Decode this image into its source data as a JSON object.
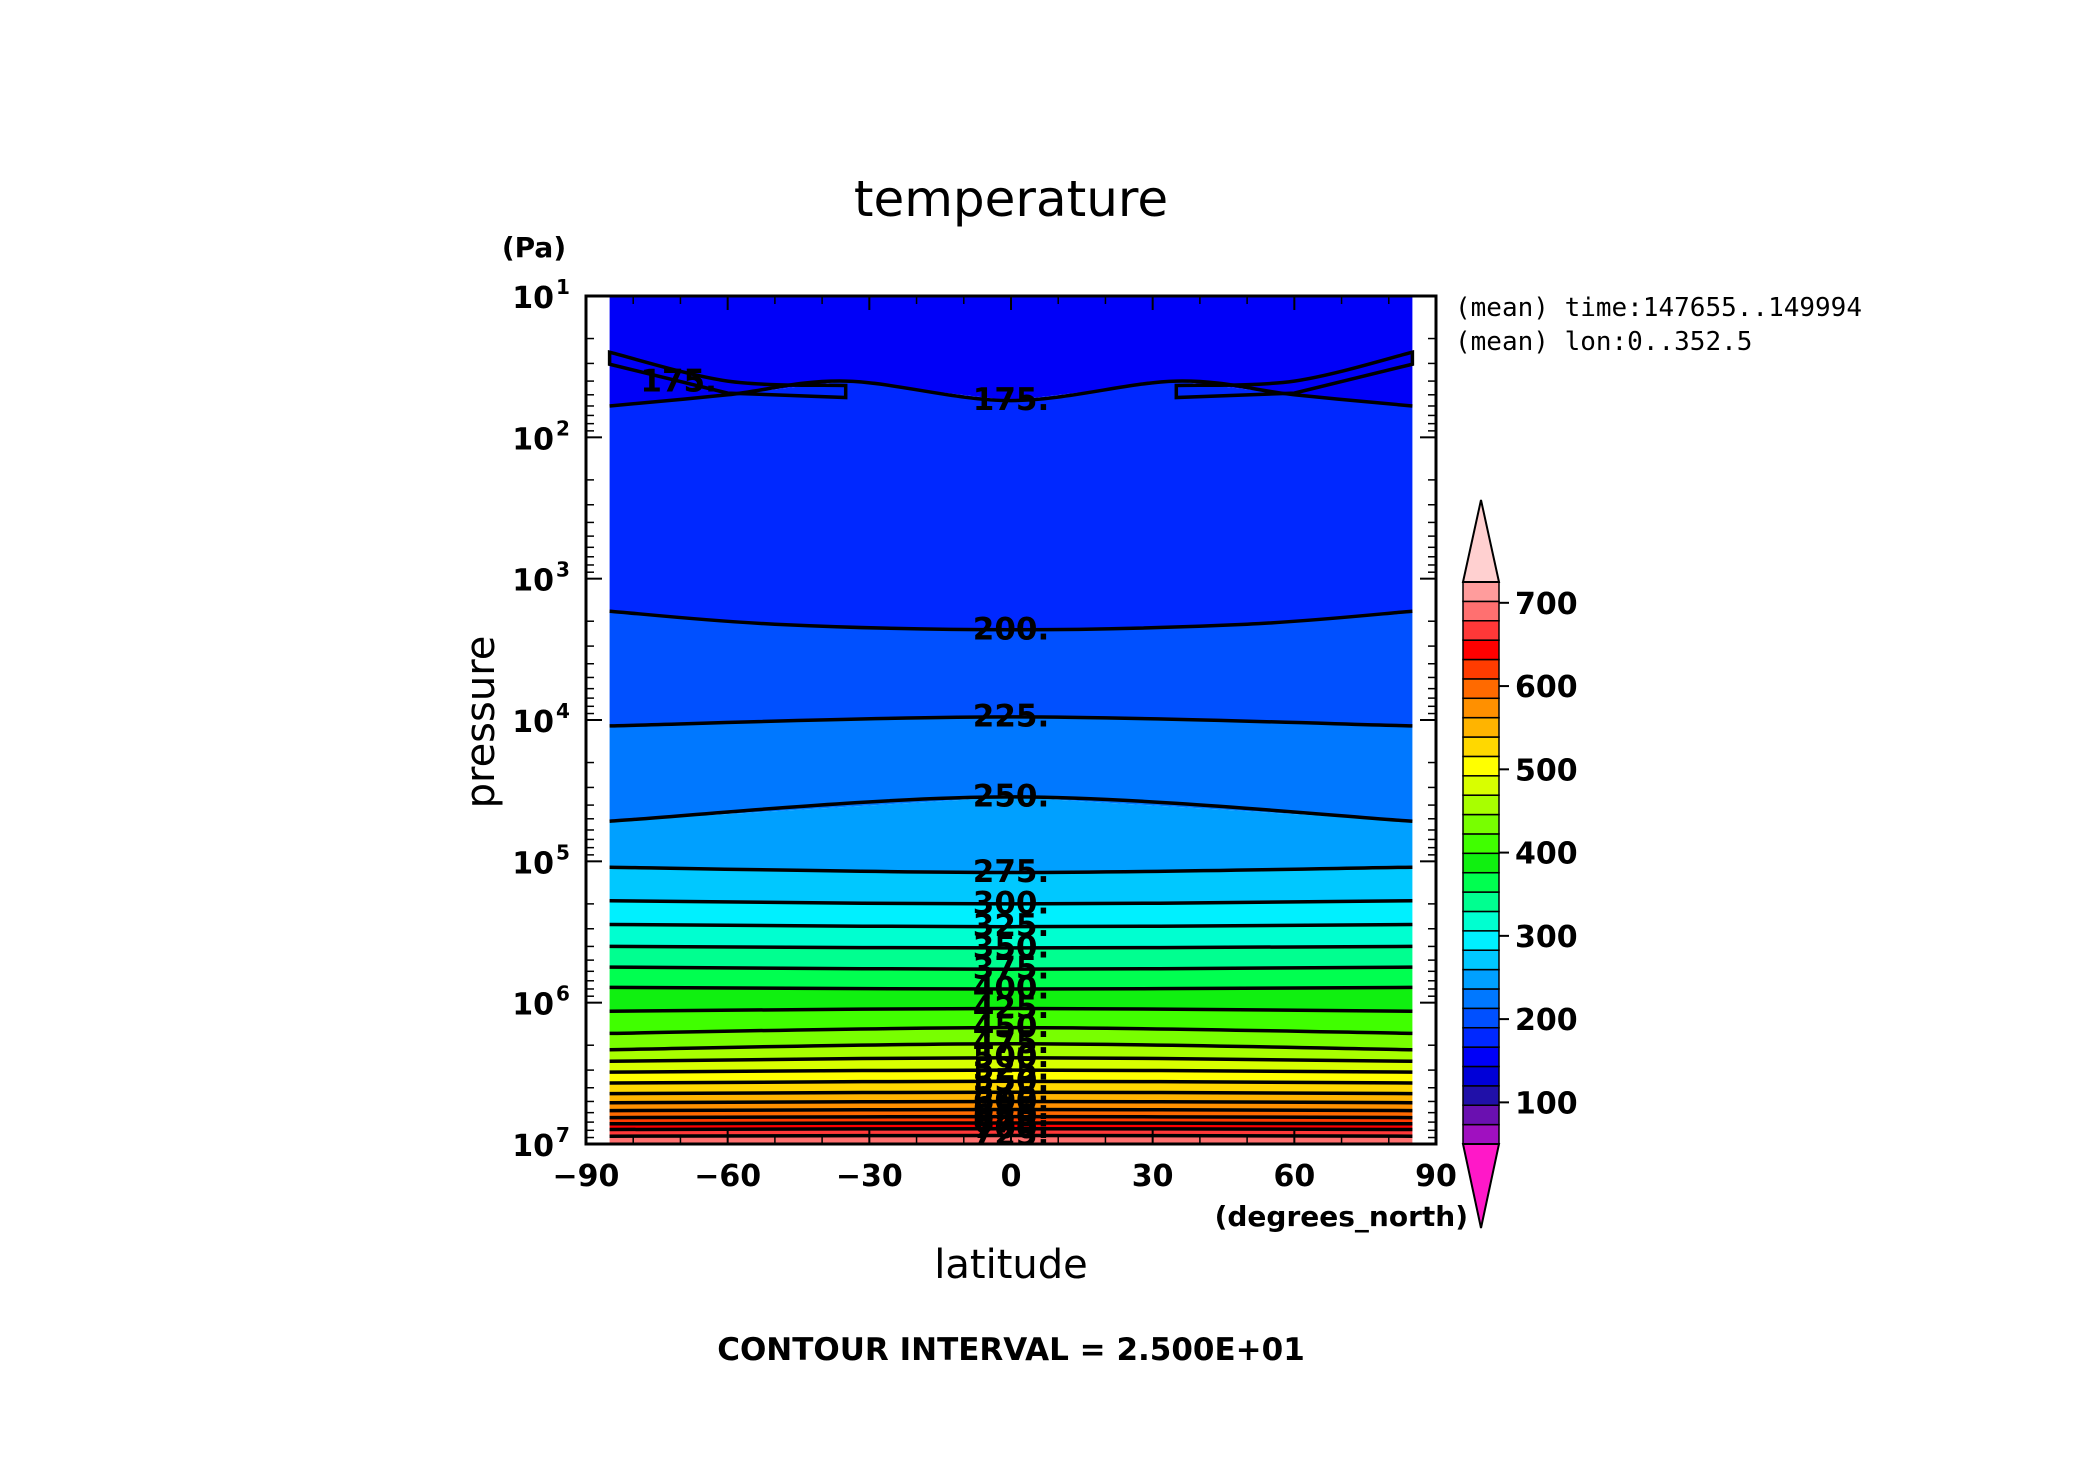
{
  "chart_data": {
    "type": "contour",
    "title": "temperature",
    "xlabel": "latitude",
    "xunit": "(degrees_north)",
    "ylabel": "pressure",
    "yunit": "(Pa)",
    "yscale": "log",
    "yreversed": true,
    "xlim": [
      -90,
      90
    ],
    "ylim": [
      10,
      10000000
    ],
    "xticks": [
      -90,
      -60,
      -30,
      0,
      30,
      60,
      90
    ],
    "xticklabels": [
      "−90",
      "−60",
      "−30",
      "0",
      "30",
      "60",
      "90"
    ],
    "yticks": [
      {
        "base": "10",
        "exp": "1"
      },
      {
        "base": "10",
        "exp": "2"
      },
      {
        "base": "10",
        "exp": "3"
      },
      {
        "base": "10",
        "exp": "4"
      },
      {
        "base": "10",
        "exp": "5"
      },
      {
        "base": "10",
        "exp": "6"
      },
      {
        "base": "10",
        "exp": "7"
      }
    ],
    "annotations": [
      "(mean) time:147655..149994",
      "(mean) lon:0..352.5"
    ],
    "footer": "CONTOUR INTERVAL = 2.500E+01",
    "contour_interval": 25,
    "data_extent": {
      "lat": [
        -85,
        85
      ],
      "pressure": [
        2.6,
        10000000
      ]
    },
    "colorbar": {
      "min": 50,
      "max": 725,
      "step": 25,
      "ticks": [
        100,
        200,
        300,
        400,
        500,
        600,
        700
      ],
      "tick_labels": [
        "100",
        "200",
        "300",
        "400",
        "500",
        "600",
        "700"
      ],
      "extend": "both",
      "under_color": "#ff18c8",
      "over_color": "#ffd0d0",
      "colors": [
        "#a010c0",
        "#6a10b0",
        "#2010a8",
        "#0000d8",
        "#0000f8",
        "#0028ff",
        "#0050ff",
        "#0078ff",
        "#00a0ff",
        "#00c8ff",
        "#00f0ff",
        "#00ffd0",
        "#00ff90",
        "#00ff50",
        "#10f010",
        "#40ff00",
        "#78ff00",
        "#a8ff00",
        "#d8ff00",
        "#ffff00",
        "#ffd800",
        "#ffb400",
        "#ff9000",
        "#ff6a00",
        "#ff3c00",
        "#ff0000",
        "#ff3838",
        "#ff7070",
        "#ff9c9c"
      ]
    },
    "contours": [
      {
        "level": 175,
        "label": "175.",
        "points": [
          [
            -85,
            60
          ],
          [
            -60,
            50
          ],
          [
            -35,
            40
          ],
          [
            0,
            55
          ],
          [
            35,
            40
          ],
          [
            60,
            50
          ],
          [
            85,
            60
          ]
        ]
      },
      {
        "level": 175,
        "label": "175.",
        "points": [
          [
            -85,
            25
          ],
          [
            -60,
            40
          ],
          [
            -35,
            43
          ]
        ]
      },
      {
        "level": 175,
        "label": "",
        "points": [
          [
            35,
            43
          ],
          [
            60,
            40
          ],
          [
            85,
            25
          ]
        ]
      },
      {
        "level": 200,
        "label": "200.",
        "points": [
          [
            -85,
            1700
          ],
          [
            -50,
            2100
          ],
          [
            0,
            2300
          ],
          [
            50,
            2100
          ],
          [
            85,
            1700
          ]
        ]
      },
      {
        "level": 225,
        "label": "225.",
        "points": [
          [
            -85,
            11000
          ],
          [
            0,
            9500
          ],
          [
            85,
            11000
          ]
        ]
      },
      {
        "level": 250,
        "label": "250.",
        "points": [
          [
            -85,
            52000
          ],
          [
            0,
            35000
          ],
          [
            85,
            52000
          ]
        ]
      },
      {
        "level": 275,
        "label": "275.",
        "points": [
          [
            -85,
            110000
          ],
          [
            0,
            120000
          ],
          [
            85,
            110000
          ]
        ]
      },
      {
        "level": 300,
        "label": "300.",
        "points": [
          [
            -85,
            190000
          ],
          [
            0,
            200000
          ],
          [
            85,
            190000
          ]
        ]
      },
      {
        "level": 325,
        "label": "325.",
        "points": [
          [
            -85,
            280000
          ],
          [
            0,
            290000
          ],
          [
            85,
            280000
          ]
        ]
      },
      {
        "level": 350,
        "label": "350.",
        "points": [
          [
            -85,
            400000
          ],
          [
            0,
            410000
          ],
          [
            85,
            400000
          ]
        ]
      },
      {
        "level": 375,
        "label": "375.",
        "points": [
          [
            -85,
            560000
          ],
          [
            0,
            580000
          ],
          [
            85,
            560000
          ]
        ]
      },
      {
        "level": 400,
        "label": "400.",
        "points": [
          [
            -85,
            780000
          ],
          [
            0,
            800000
          ],
          [
            85,
            780000
          ]
        ]
      },
      {
        "level": 425,
        "label": "425.",
        "points": [
          [
            -85,
            1150000
          ],
          [
            0,
            1100000
          ],
          [
            85,
            1150000
          ]
        ]
      },
      {
        "level": 450,
        "label": "450.",
        "points": [
          [
            -85,
            1650000
          ],
          [
            0,
            1500000
          ],
          [
            85,
            1650000
          ]
        ]
      },
      {
        "level": 475,
        "label": "475.",
        "points": [
          [
            -85,
            2150000
          ],
          [
            0,
            1950000
          ],
          [
            85,
            2150000
          ]
        ]
      },
      {
        "level": 500,
        "label": "500.",
        "points": [
          [
            -85,
            2600000
          ],
          [
            0,
            2450000
          ],
          [
            85,
            2600000
          ]
        ]
      },
      {
        "level": 525,
        "label": "525.",
        "points": [
          [
            -85,
            3100000
          ],
          [
            0,
            3000000
          ],
          [
            85,
            3100000
          ]
        ]
      },
      {
        "level": 550,
        "label": "550.",
        "points": [
          [
            -85,
            3700000
          ],
          [
            0,
            3600000
          ],
          [
            85,
            3700000
          ]
        ]
      },
      {
        "level": 575,
        "label": "575.",
        "points": [
          [
            -85,
            4400000
          ],
          [
            0,
            4300000
          ],
          [
            85,
            4400000
          ]
        ]
      },
      {
        "level": 600,
        "label": "600.",
        "points": [
          [
            -85,
            5100000
          ],
          [
            0,
            5000000
          ],
          [
            85,
            5100000
          ]
        ]
      },
      {
        "level": 625,
        "label": "625.",
        "points": [
          [
            -85,
            5800000
          ],
          [
            0,
            5700000
          ],
          [
            85,
            5800000
          ]
        ]
      },
      {
        "level": 650,
        "label": "650.",
        "points": [
          [
            -85,
            6500000
          ],
          [
            0,
            6400000
          ],
          [
            85,
            6500000
          ]
        ]
      },
      {
        "level": 675,
        "label": "675.",
        "points": [
          [
            -85,
            7200000
          ],
          [
            0,
            7100000
          ],
          [
            85,
            7200000
          ]
        ]
      },
      {
        "level": 700,
        "label": "700.",
        "points": [
          [
            -85,
            7900000
          ],
          [
            0,
            7800000
          ],
          [
            85,
            7900000
          ]
        ]
      },
      {
        "level": 725,
        "label": "725.",
        "points": [
          [
            -85,
            8800000
          ],
          [
            0,
            8700000
          ],
          [
            85,
            8800000
          ]
        ]
      }
    ]
  }
}
